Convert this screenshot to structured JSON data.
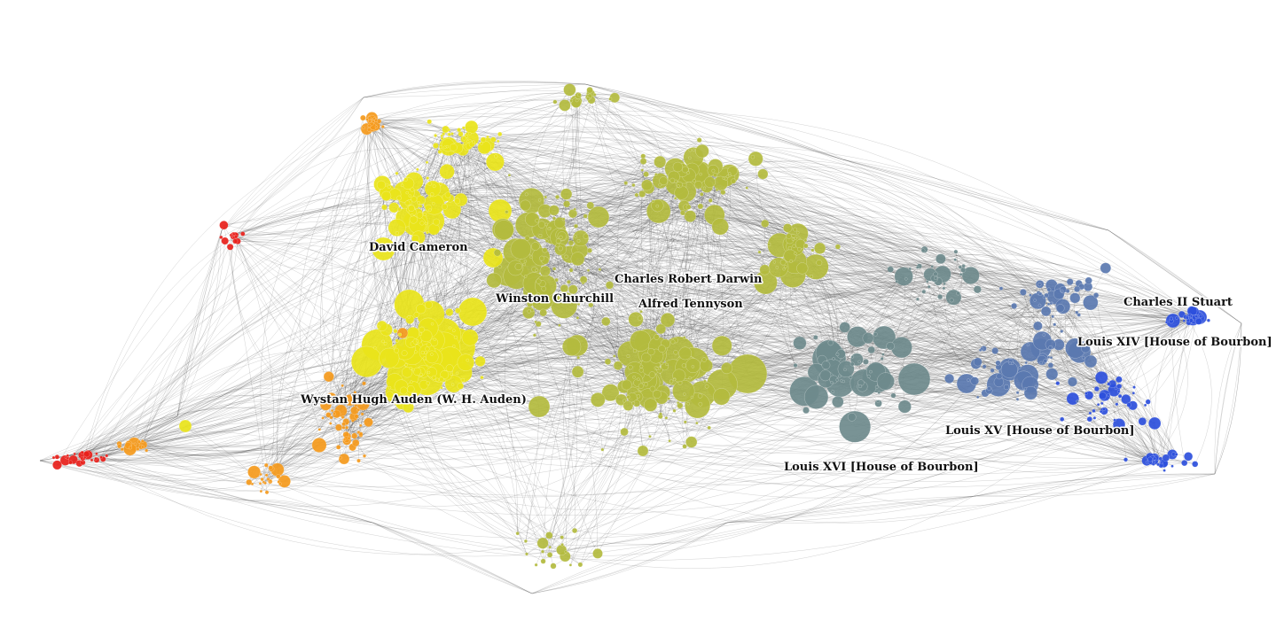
{
  "graph": {
    "colors": {
      "red": "#e8201a",
      "orange": "#f59a1c",
      "yellow": "#e9e41a",
      "olive": "#b3bb3e",
      "slate": "#6e8a8c",
      "steel": "#5a78b0",
      "blue": "#2d4fdc",
      "edge": "#333333"
    },
    "labels": [
      {
        "text": "David Cameron"
      },
      {
        "text": "Charles Robert Darwin"
      },
      {
        "text": "Winston Churchill"
      },
      {
        "text": "Alfred Tennyson"
      },
      {
        "text": "Charles II Stuart"
      },
      {
        "text": "Louis XIV [House of Bourbon]"
      },
      {
        "text": "Wystan Hugh Auden (W. H. Auden)"
      },
      {
        "text": "Louis XV [House of Bourbon]"
      },
      {
        "text": "Louis XVI [House of Bourbon]"
      }
    ]
  }
}
